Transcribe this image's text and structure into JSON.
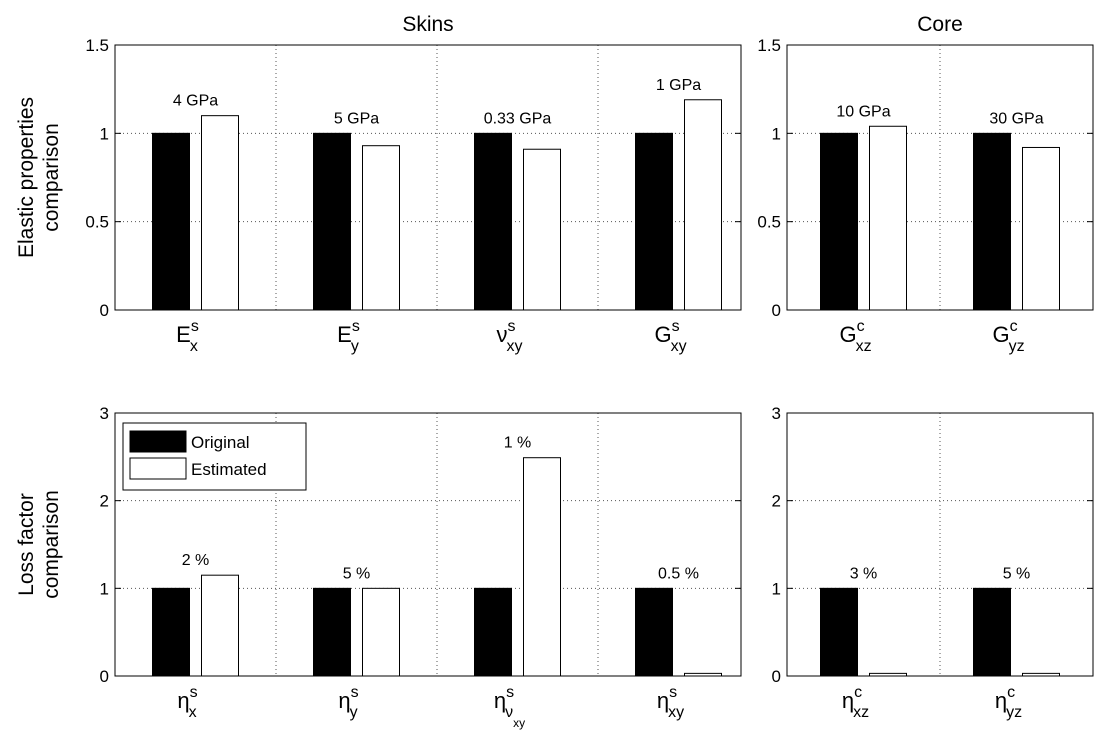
{
  "colors": {
    "original": "#000000",
    "estimated": "#ffffff",
    "edge": "#000000"
  },
  "legend": {
    "items": [
      "Original",
      "Estimated"
    ],
    "placement": "top-left of lower-left panel"
  },
  "chart_data": [
    {
      "type": "bar",
      "title": "Skins",
      "ylabel": [
        "Elastic properties",
        "comparison"
      ],
      "ylim": [
        0,
        1.5
      ],
      "yticks": [
        "0",
        "0.5",
        "1",
        "1.5"
      ],
      "grid": true,
      "categories": [
        {
          "main": "E",
          "sup": "s",
          "sub": "x"
        },
        {
          "main": "E",
          "sup": "s",
          "sub": "y"
        },
        {
          "main": "ν",
          "sup": "s",
          "sub": "xy"
        },
        {
          "main": "G",
          "sup": "s",
          "sub": "xy"
        }
      ],
      "series": [
        {
          "name": "Original",
          "values": [
            1,
            1,
            1,
            1
          ]
        },
        {
          "name": "Estimated",
          "values": [
            1.1,
            0.93,
            0.91,
            1.19
          ]
        }
      ],
      "annotations": [
        "4 GPa",
        "5 GPa",
        "0.33 GPa",
        "1 GPa"
      ]
    },
    {
      "type": "bar",
      "title": "Core",
      "ylim": [
        0,
        1.5
      ],
      "yticks": [
        "0",
        "0.5",
        "1",
        "1.5"
      ],
      "grid": true,
      "categories": [
        {
          "main": "G",
          "sup": "c",
          "sub": "xz"
        },
        {
          "main": "G",
          "sup": "c",
          "sub": "yz"
        }
      ],
      "series": [
        {
          "name": "Original",
          "values": [
            1,
            1
          ]
        },
        {
          "name": "Estimated",
          "values": [
            1.04,
            0.92
          ]
        }
      ],
      "annotations": [
        "10 GPa",
        "30 GPa"
      ]
    },
    {
      "type": "bar",
      "ylabel": [
        "Loss factor",
        "comparison"
      ],
      "ylim": [
        0,
        3
      ],
      "yticks": [
        "0",
        "1",
        "2",
        "3"
      ],
      "grid": true,
      "categories": [
        {
          "main": "η",
          "sup": "s",
          "sub": "x"
        },
        {
          "main": "η",
          "sup": "s",
          "sub": "y"
        },
        {
          "main": "η",
          "sup": "s",
          "sub": "ν",
          "sub2": "xy"
        },
        {
          "main": "η",
          "sup": "s",
          "sub": "xy"
        }
      ],
      "series": [
        {
          "name": "Original",
          "values": [
            1,
            1,
            1,
            1
          ]
        },
        {
          "name": "Estimated",
          "values": [
            1.15,
            1.0,
            2.49,
            0.03
          ]
        }
      ],
      "annotations": [
        "2 %",
        "5 %",
        "1 %",
        "0.5 %"
      ]
    },
    {
      "type": "bar",
      "ylim": [
        0,
        3
      ],
      "yticks": [
        "0",
        "1",
        "2",
        "3"
      ],
      "grid": true,
      "categories": [
        {
          "main": "η",
          "sup": "c",
          "sub": "xz"
        },
        {
          "main": "η",
          "sup": "c",
          "sub": "yz"
        }
      ],
      "series": [
        {
          "name": "Original",
          "values": [
            1,
            1
          ]
        },
        {
          "name": "Estimated",
          "values": [
            0.03,
            0.03
          ]
        }
      ],
      "annotations": [
        "3 %",
        "5 %"
      ]
    }
  ]
}
